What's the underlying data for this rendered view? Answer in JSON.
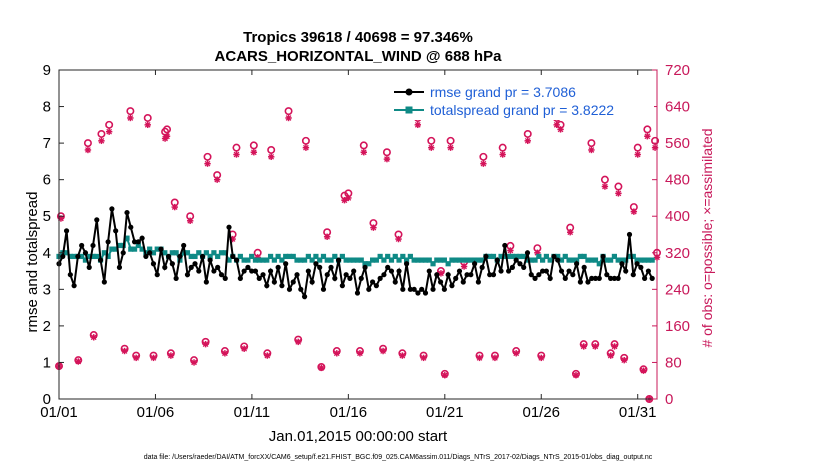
{
  "chart_data": {
    "type": "line",
    "title_line1": "Tropics 39618 / 40698 = 97.346%",
    "title_line2": "ACARS_HORIZONTAL_WIND @ 688 hPa",
    "xlabel": "Jan.01,2015 00:00:00 start",
    "ylabel_left": "rmse and totalspread",
    "ylabel_right": "# of obs: o=possible; ×=assimilated",
    "footer": "data file: /Users/raeder/DAI/ATM_forcXX/CAM6_setup/f.e21.FHIST_BGC.f09_025.CAM6assim.011/Diags_NTrS_2017-02/Diags_NTrS_2015-01/obs_diag_output.nc",
    "xlim": [
      0,
      31
    ],
    "ylim_left": [
      0,
      9
    ],
    "ylim_right": [
      0,
      720
    ],
    "x_ticks": [
      0,
      5,
      10,
      15,
      20,
      25,
      30
    ],
    "x_tick_labels": [
      "01/01",
      "01/06",
      "01/11",
      "01/16",
      "01/21",
      "01/26",
      "01/31"
    ],
    "y_ticks_left": [
      0,
      1,
      2,
      3,
      4,
      5,
      6,
      7,
      8,
      9
    ],
    "y_tick_labels_left": [
      "0",
      "1",
      "2",
      "3",
      "4",
      "5",
      "6",
      "7",
      "8",
      "9"
    ],
    "y_ticks_right": [
      0,
      80,
      160,
      240,
      320,
      400,
      480,
      560,
      640,
      720
    ],
    "y_tick_labels_right": [
      "0",
      "80",
      "160",
      "240",
      "320",
      "400",
      "480",
      "560",
      "640",
      "720"
    ],
    "legend": [
      {
        "label": "rmse grand pr = 3.7086",
        "color": "#000000"
      },
      {
        "label": "totalspread grand pr = 3.8222",
        "color": "#008080"
      }
    ],
    "legend_position": "top-right",
    "colors": {
      "rmse": "#000000",
      "spread": "#0f8a86",
      "obs": "#d4145a",
      "axis_right": "#c8185a",
      "legend_text": "#1f5fd6"
    },
    "series": [
      {
        "name": "rmse",
        "values": [
          3.7,
          3.9,
          4.6,
          3.4,
          3.1,
          3.9,
          4.2,
          4.0,
          3.6,
          4.2,
          4.9,
          3.8,
          3.2,
          4.3,
          5.2,
          4.6,
          3.6,
          4.0,
          5.1,
          4.7,
          4.3,
          4.3,
          4.4,
          3.9,
          4.0,
          3.7,
          3.4,
          4.1,
          3.6,
          3.9,
          3.7,
          3.3,
          3.9,
          4.2,
          3.4,
          3.6,
          3.7,
          3.5,
          3.9,
          3.2,
          3.8,
          3.5,
          3.6,
          3.4,
          3.3,
          4.7,
          3.9,
          3.8,
          3.3,
          3.5,
          3.6,
          3.5,
          3.5,
          3.3,
          3.4,
          3.1,
          3.5,
          3.2,
          3.6,
          3.1,
          3.7,
          3.0,
          3.2,
          3.4,
          3.0,
          2.8,
          3.5,
          3.2,
          3.7,
          3.6,
          3.0,
          3.4,
          3.6,
          3.3,
          3.8,
          3.1,
          3.4,
          3.3,
          3.5,
          2.9,
          3.3,
          3.6,
          3.0,
          3.2,
          3.1,
          3.3,
          3.4,
          3.6,
          3.5,
          3.2,
          3.5,
          3.0,
          3.7,
          3.0,
          3.0,
          2.9,
          3.0,
          2.9,
          3.5,
          3.0,
          3.4,
          3.2,
          3.0,
          3.4,
          3.1,
          3.3,
          3.5,
          3.2,
          3.4,
          3.4,
          3.7,
          3.2,
          3.6,
          3.9,
          3.4,
          3.4,
          3.8,
          3.5,
          4.2,
          3.5,
          3.6,
          3.8,
          3.7,
          3.6,
          4.0,
          3.4,
          3.3,
          3.4,
          3.5,
          3.5,
          3.3,
          3.9,
          3.8,
          3.5,
          3.3,
          3.5,
          3.4,
          3.7,
          3.2,
          3.6,
          3.2,
          3.3,
          3.3,
          3.3,
          3.9,
          3.4,
          3.3,
          3.3,
          3.3,
          3.7,
          3.5,
          4.5,
          3.4,
          3.7,
          3.6,
          3.3,
          3.5,
          3.3
        ]
      },
      {
        "name": "totalspread",
        "values": [
          3.9,
          4.0,
          4.0,
          3.9,
          3.9,
          3.9,
          3.9,
          3.8,
          3.9,
          3.9,
          3.9,
          3.8,
          4.0,
          3.9,
          4.1,
          4.1,
          4.2,
          4.2,
          4.4,
          4.1,
          4.1,
          4.2,
          4.1,
          4.0,
          4.1,
          4.0,
          4.1,
          4.1,
          4.0,
          3.9,
          4.0,
          4.0,
          3.8,
          4.0,
          4.0,
          3.9,
          3.9,
          4.0,
          3.9,
          4.0,
          3.9,
          4.0,
          3.9,
          4.0,
          4.0,
          3.8,
          3.9,
          3.8,
          3.9,
          3.8,
          3.8,
          3.9,
          3.8,
          3.8,
          3.8,
          3.8,
          3.9,
          3.8,
          3.9,
          3.8,
          3.9,
          3.9,
          3.9,
          3.8,
          3.8,
          3.8,
          3.9,
          3.8,
          3.9,
          3.8,
          3.9,
          3.8,
          3.8,
          3.9,
          3.8,
          3.9,
          3.8,
          3.8,
          3.8,
          3.8,
          3.8,
          3.7,
          3.7,
          3.8,
          3.8,
          3.9,
          3.8,
          3.9,
          3.8,
          3.9,
          3.8,
          3.9,
          3.8,
          3.9,
          3.8,
          3.8,
          3.8,
          3.8,
          3.8,
          3.7,
          3.8,
          3.8,
          3.8,
          3.7,
          3.8,
          3.8,
          3.8,
          3.8,
          3.8,
          3.8,
          3.8,
          3.8,
          3.8,
          3.9,
          3.9,
          3.9,
          3.8,
          3.9,
          3.9,
          3.9,
          3.9,
          3.9,
          3.9,
          3.9,
          3.8,
          3.8,
          3.8,
          3.9,
          3.8,
          3.9,
          3.8,
          3.9,
          3.9,
          3.8,
          3.9,
          3.8,
          3.8,
          3.8,
          3.9,
          3.9,
          3.8,
          3.8,
          3.8,
          3.7,
          3.9,
          3.8,
          3.8,
          3.9,
          3.8,
          3.8,
          3.8,
          3.9,
          3.9,
          3.8,
          3.8,
          3.8,
          3.8,
          3.8
        ]
      },
      {
        "name": "obs_possible",
        "points": [
          [
            0,
            72
          ],
          [
            0.1,
            400
          ],
          [
            1.0,
            85
          ],
          [
            1.5,
            560
          ],
          [
            1.8,
            140
          ],
          [
            2.2,
            580
          ],
          [
            2.6,
            600
          ],
          [
            3.4,
            110
          ],
          [
            3.7,
            630
          ],
          [
            4.0,
            95
          ],
          [
            4.6,
            615
          ],
          [
            4.9,
            95
          ],
          [
            5.5,
            585
          ],
          [
            5.6,
            590
          ],
          [
            5.8,
            100
          ],
          [
            6.0,
            430
          ],
          [
            6.8,
            400
          ],
          [
            7.0,
            85
          ],
          [
            7.6,
            125
          ],
          [
            7.7,
            530
          ],
          [
            8.2,
            490
          ],
          [
            8.6,
            105
          ],
          [
            9.0,
            360
          ],
          [
            9.2,
            550
          ],
          [
            9.6,
            115
          ],
          [
            10.1,
            555
          ],
          [
            10.3,
            320
          ],
          [
            10.8,
            100
          ],
          [
            11.0,
            545
          ],
          [
            11.9,
            630
          ],
          [
            12.4,
            130
          ],
          [
            12.8,
            565
          ],
          [
            13.6,
            70
          ],
          [
            13.9,
            365
          ],
          [
            14.4,
            105
          ],
          [
            14.8,
            445
          ],
          [
            15.0,
            450
          ],
          [
            15.6,
            105
          ],
          [
            15.8,
            555
          ],
          [
            16.3,
            385
          ],
          [
            16.8,
            110
          ],
          [
            17.0,
            540
          ],
          [
            17.6,
            360
          ],
          [
            17.8,
            100
          ],
          [
            18.6,
            615
          ],
          [
            18.9,
            95
          ],
          [
            19.3,
            565
          ],
          [
            19.8,
            280
          ],
          [
            20.0,
            55
          ],
          [
            20.3,
            565
          ],
          [
            21.0,
            300
          ],
          [
            21.8,
            95
          ],
          [
            22.0,
            530
          ],
          [
            22.6,
            95
          ],
          [
            23.0,
            550
          ],
          [
            23.4,
            335
          ],
          [
            23.7,
            105
          ],
          [
            24.3,
            580
          ],
          [
            24.8,
            330
          ],
          [
            25.0,
            95
          ],
          [
            25.8,
            615
          ],
          [
            26.0,
            600
          ],
          [
            26.5,
            375
          ],
          [
            26.8,
            55
          ],
          [
            27.2,
            120
          ],
          [
            27.6,
            560
          ],
          [
            27.8,
            120
          ],
          [
            28.3,
            480
          ],
          [
            28.6,
            100
          ],
          [
            28.8,
            120
          ],
          [
            29.0,
            465
          ],
          [
            29.3,
            90
          ],
          [
            29.8,
            420
          ],
          [
            30.0,
            550
          ],
          [
            30.3,
            65
          ],
          [
            30.5,
            590
          ],
          [
            30.6,
            0
          ],
          [
            30.9,
            565
          ],
          [
            31.0,
            320
          ]
        ]
      },
      {
        "name": "obs_assimilated",
        "points": [
          [
            0,
            72
          ],
          [
            0.1,
            395
          ],
          [
            1.0,
            82
          ],
          [
            1.5,
            545
          ],
          [
            1.8,
            135
          ],
          [
            2.2,
            565
          ],
          [
            2.6,
            585
          ],
          [
            3.4,
            105
          ],
          [
            3.7,
            615
          ],
          [
            4.0,
            90
          ],
          [
            4.6,
            600
          ],
          [
            4.9,
            90
          ],
          [
            5.5,
            570
          ],
          [
            5.6,
            575
          ],
          [
            5.8,
            95
          ],
          [
            6.0,
            420
          ],
          [
            6.8,
            390
          ],
          [
            7.0,
            80
          ],
          [
            7.6,
            120
          ],
          [
            7.7,
            515
          ],
          [
            8.2,
            480
          ],
          [
            8.6,
            100
          ],
          [
            9.0,
            350
          ],
          [
            9.2,
            535
          ],
          [
            9.6,
            110
          ],
          [
            10.1,
            540
          ],
          [
            10.3,
            310
          ],
          [
            10.8,
            95
          ],
          [
            11.0,
            530
          ],
          [
            11.9,
            615
          ],
          [
            12.4,
            125
          ],
          [
            12.8,
            550
          ],
          [
            13.6,
            68
          ],
          [
            13.9,
            355
          ],
          [
            14.4,
            100
          ],
          [
            14.8,
            435
          ],
          [
            15.0,
            440
          ],
          [
            15.6,
            100
          ],
          [
            15.8,
            540
          ],
          [
            16.3,
            375
          ],
          [
            16.8,
            105
          ],
          [
            17.0,
            525
          ],
          [
            17.6,
            350
          ],
          [
            17.8,
            95
          ],
          [
            18.6,
            600
          ],
          [
            18.9,
            90
          ],
          [
            19.3,
            550
          ],
          [
            19.8,
            275
          ],
          [
            20.0,
            52
          ],
          [
            20.3,
            550
          ],
          [
            21.0,
            290
          ],
          [
            21.8,
            90
          ],
          [
            22.0,
            515
          ],
          [
            22.6,
            90
          ],
          [
            23.0,
            535
          ],
          [
            23.4,
            325
          ],
          [
            23.7,
            100
          ],
          [
            24.3,
            565
          ],
          [
            24.8,
            320
          ],
          [
            25.0,
            90
          ],
          [
            25.8,
            600
          ],
          [
            26.0,
            590
          ],
          [
            26.5,
            365
          ],
          [
            26.8,
            52
          ],
          [
            27.2,
            115
          ],
          [
            27.6,
            545
          ],
          [
            27.8,
            115
          ],
          [
            28.3,
            465
          ],
          [
            28.6,
            95
          ],
          [
            28.8,
            115
          ],
          [
            29.0,
            450
          ],
          [
            29.3,
            85
          ],
          [
            29.8,
            410
          ],
          [
            30.0,
            535
          ],
          [
            30.3,
            62
          ],
          [
            30.5,
            575
          ],
          [
            30.6,
            0
          ],
          [
            30.9,
            550
          ],
          [
            31.0,
            310
          ]
        ]
      }
    ]
  }
}
